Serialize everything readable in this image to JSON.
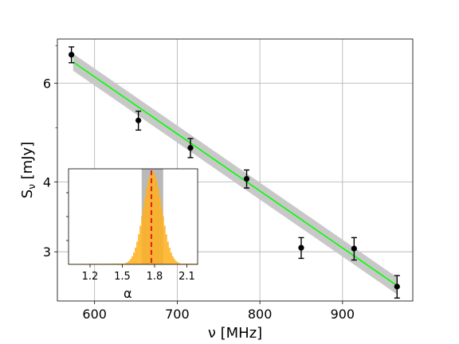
{
  "chart_data": [
    {
      "type": "scatter",
      "xlabel": "ν [MHz]",
      "ylabel": "S",
      "ylabel_subscript": "ν",
      "ylabel_unit": " [mJy]",
      "xscale": "linear",
      "yscale": "log",
      "xlim": [
        555,
        985
      ],
      "ylim": [
        2.45,
        7.2
      ],
      "grid": true,
      "x_ticks": [
        600,
        700,
        800,
        900
      ],
      "y_ticks": [
        3,
        4,
        6
      ],
      "points": [
        {
          "x": 572,
          "y": 6.75,
          "err": 0.22
        },
        {
          "x": 653,
          "y": 5.15,
          "err": 0.2
        },
        {
          "x": 716,
          "y": 4.6,
          "err": 0.18
        },
        {
          "x": 784,
          "y": 4.05,
          "err": 0.15
        },
        {
          "x": 850,
          "y": 3.05,
          "err": 0.13
        },
        {
          "x": 914,
          "y": 3.04,
          "err": 0.14
        },
        {
          "x": 966,
          "y": 2.6,
          "err": 0.12
        }
      ],
      "fit": {
        "x": [
          574,
          966
        ],
        "y": [
          6.55,
          2.61
        ]
      },
      "fit_band_fraction": 0.035,
      "colors": {
        "points": "#000000",
        "fit": "#00ff00",
        "band": "#c8c8c8"
      }
    },
    {
      "type": "histogram",
      "xlabel": "α",
      "xlim": [
        1.0,
        2.2
      ],
      "x_ticks": [
        1.2,
        1.5,
        1.8,
        2.1
      ],
      "x_tick_labels": [
        "1.2",
        "1.5",
        "1.8",
        "2.1"
      ],
      "median": 1.77,
      "interval": [
        1.68,
        1.88
      ],
      "distribution": {
        "mean": 1.78,
        "sigma": 0.085,
        "peak_counts": 1.0,
        "tail_level": 0.012
      },
      "colors": {
        "bars": "#ffb020",
        "band": "#808080",
        "median_line": "#e02010"
      }
    }
  ]
}
